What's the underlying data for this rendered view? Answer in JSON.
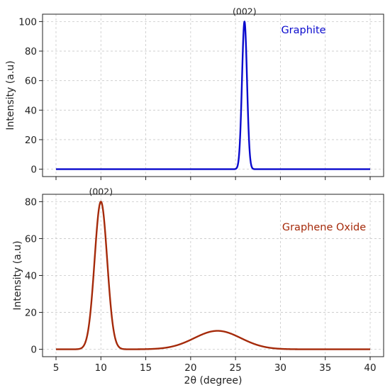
{
  "chart_data": [
    {
      "type": "line",
      "ylabel": "Intensity (a.u)",
      "xlabel": "",
      "xlim": [
        3.5,
        41.5
      ],
      "ylim": [
        -5,
        105
      ],
      "xticks": [
        5,
        10,
        15,
        20,
        25,
        30,
        35,
        40
      ],
      "show_xtick_labels": false,
      "yticks": [
        0,
        20,
        40,
        60,
        80,
        100
      ],
      "grid": true,
      "legend": "top-right",
      "series": [
        {
          "name": "Graphite",
          "color": "#0a0acd",
          "peaks": [
            {
              "center": 26,
              "height": 100,
              "sigma": 0.28
            }
          ],
          "x_range": [
            5,
            40
          ]
        }
      ],
      "annotations": [
        {
          "text": "(002)",
          "x": 26,
          "y": 100
        }
      ]
    },
    {
      "type": "line",
      "ylabel": "Intensity (a.u)",
      "xlabel": "2θ (degree)",
      "xlim": [
        3.5,
        41.5
      ],
      "ylim": [
        -4,
        84
      ],
      "xticks": [
        5,
        10,
        15,
        20,
        25,
        30,
        35,
        40
      ],
      "show_xtick_labels": true,
      "yticks": [
        0,
        20,
        40,
        60,
        80
      ],
      "grid": true,
      "legend": "top-right",
      "series": [
        {
          "name": "Graphene Oxide",
          "color": "#a52a0a",
          "peaks": [
            {
              "center": 10,
              "height": 80,
              "sigma": 0.7
            },
            {
              "center": 23,
              "height": 10,
              "sigma": 2.6
            }
          ],
          "x_range": [
            5,
            40
          ]
        }
      ],
      "annotations": [
        {
          "text": "(002)",
          "x": 10,
          "y": 80
        }
      ]
    }
  ]
}
